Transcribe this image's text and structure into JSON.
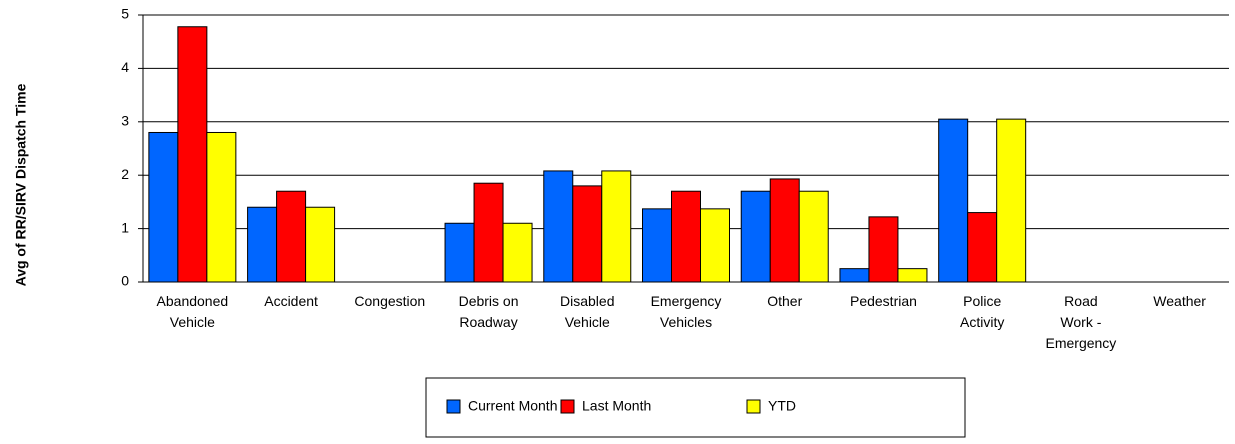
{
  "chart_data": {
    "type": "bar",
    "y_label": "Avg of RR/SIRV Dispatch Time",
    "categories": [
      [
        "Abandoned",
        "Vehicle"
      ],
      [
        "Accident"
      ],
      [
        "Congestion"
      ],
      [
        "Debris on",
        "Roadway"
      ],
      [
        "Disabled",
        "Vehicle"
      ],
      [
        "Emergency",
        "Vehicles"
      ],
      [
        "Other"
      ],
      [
        "Pedestrian"
      ],
      [
        "Police",
        "Activity"
      ],
      [
        "Road",
        "Work -",
        "Emergency"
      ],
      [
        "Weather"
      ]
    ],
    "series": [
      {
        "name": "Current Month",
        "color": "#0066ff",
        "values": [
          2.8,
          1.4,
          0,
          1.1,
          2.08,
          1.37,
          1.7,
          0.25,
          3.05,
          0,
          0
        ]
      },
      {
        "name": "Last Month",
        "color": "#ff0000",
        "values": [
          4.78,
          1.7,
          0,
          1.85,
          1.8,
          1.7,
          1.93,
          1.22,
          1.3,
          0,
          0
        ]
      },
      {
        "name": "YTD",
        "color": "#ffff00",
        "values": [
          2.8,
          1.4,
          0,
          1.1,
          2.08,
          1.37,
          1.7,
          0.25,
          3.05,
          0,
          0
        ]
      }
    ],
    "ylim": [
      0,
      5
    ],
    "yticks": [
      0,
      1,
      2,
      3,
      4,
      5
    ],
    "grid": true,
    "legend": "bottom"
  }
}
